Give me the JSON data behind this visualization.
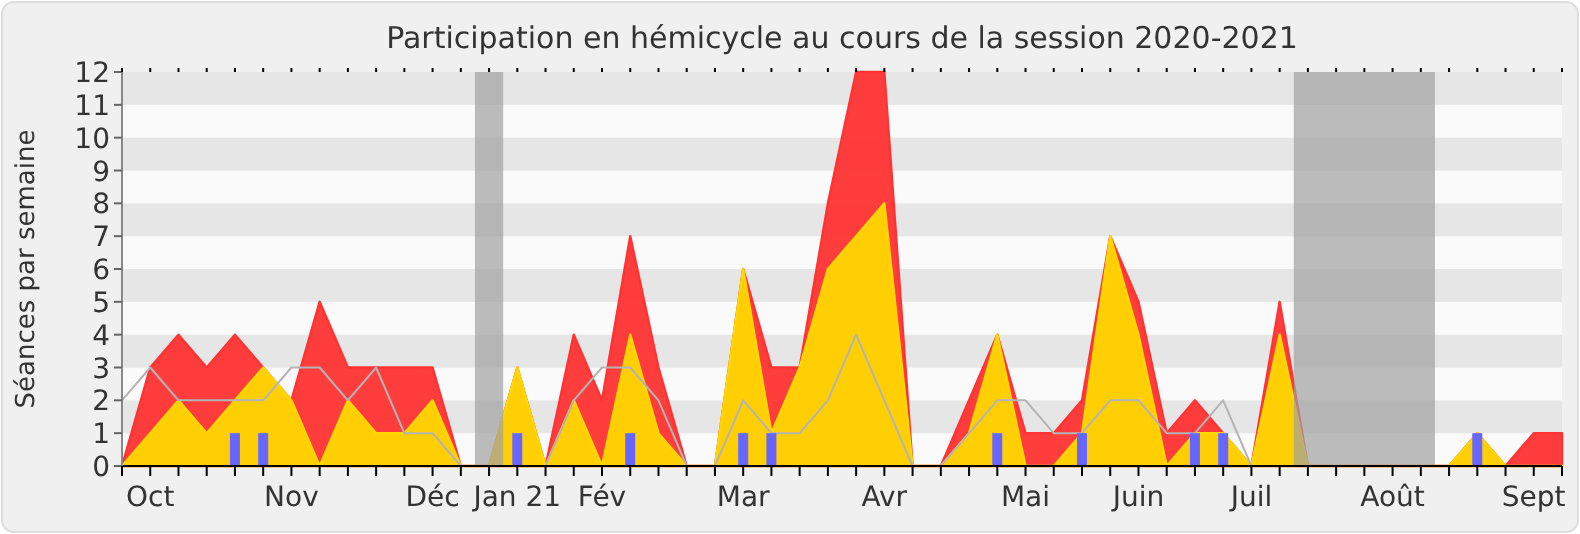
{
  "chart_data": {
    "type": "area",
    "title": "Participation en hémicycle au cours de la session 2020-2021",
    "ylabel": "Séances par semaine",
    "categories": [
      null,
      "Oct",
      null,
      null,
      null,
      null,
      "Nov",
      null,
      null,
      null,
      null,
      "Déc",
      null,
      null,
      "Jan 21",
      null,
      null,
      "Fév",
      null,
      null,
      null,
      null,
      "Mar",
      null,
      null,
      null,
      null,
      "Avr",
      null,
      null,
      null,
      null,
      "Mai",
      null,
      null,
      null,
      "Juin",
      null,
      null,
      null,
      "Juil",
      null,
      null,
      null,
      null,
      "Août",
      null,
      null,
      null,
      null,
      "Sept",
      null
    ],
    "series": [
      {
        "color": "#ff3333",
        "values": [
          0,
          3,
          4,
          3,
          4,
          3,
          2,
          5,
          3,
          3,
          3,
          3,
          0,
          0,
          3,
          0,
          4,
          2,
          7,
          3,
          0,
          0,
          6,
          3,
          3,
          8,
          12,
          12,
          0,
          0,
          2,
          4,
          1,
          1,
          2,
          7,
          5,
          1,
          2,
          1,
          0,
          5,
          0,
          0,
          0,
          0,
          0,
          0,
          1,
          0,
          1,
          1
        ]
      },
      {
        "color": "#ffd700",
        "values": [
          0,
          1,
          2,
          1,
          2,
          3,
          2,
          0,
          2,
          1,
          1,
          2,
          0,
          0,
          3,
          0,
          2,
          0,
          4,
          1,
          0,
          0,
          6,
          1,
          3,
          6,
          7,
          8,
          0,
          0,
          1,
          4,
          0,
          0,
          1,
          7,
          4,
          0,
          1,
          1,
          0,
          4,
          0,
          0,
          0,
          0,
          0,
          0,
          1,
          0,
          0,
          0
        ]
      },
      {
        "type": "line",
        "color": "#b4b4b4",
        "values": [
          2,
          3,
          2,
          2,
          2,
          2,
          3,
          3,
          2,
          3,
          1,
          1,
          0,
          0,
          0,
          0,
          2,
          3,
          3,
          2,
          0,
          0,
          2,
          1,
          1,
          2,
          4,
          2,
          0,
          0,
          1,
          2,
          2,
          1,
          1,
          2,
          2,
          1,
          1,
          2,
          0,
          0,
          0,
          0,
          0,
          0,
          0,
          0,
          0,
          0,
          0,
          0
        ]
      },
      {
        "type": "bar",
        "color": "#6666ff",
        "values": [
          null,
          null,
          null,
          null,
          1,
          1,
          null,
          null,
          null,
          null,
          null,
          null,
          null,
          null,
          1,
          null,
          null,
          null,
          1,
          null,
          null,
          null,
          1,
          1,
          null,
          null,
          null,
          null,
          null,
          null,
          null,
          1,
          null,
          null,
          1,
          null,
          null,
          null,
          1,
          1,
          null,
          null,
          null,
          null,
          null,
          null,
          null,
          null,
          1,
          null,
          null,
          null
        ]
      }
    ],
    "ylim": [
      0,
      12
    ],
    "yticks": [
      0,
      1,
      2,
      3,
      4,
      5,
      6,
      7,
      8,
      9,
      10,
      11,
      12
    ]
  }
}
